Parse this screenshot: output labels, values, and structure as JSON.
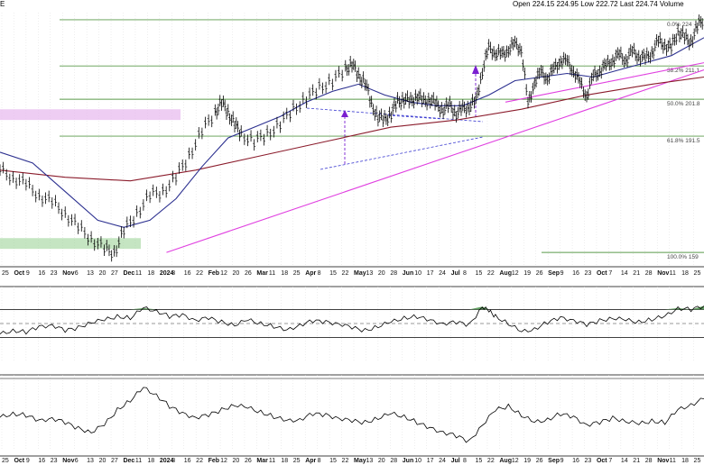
{
  "header": {
    "left_label": "E",
    "open_label": "Open",
    "open_value": "224.15",
    "high_value": "224.95",
    "low_label": "Low",
    "low_value": "222.72",
    "last_label": "Last",
    "last_value": "224.74",
    "volume_label": "Volume"
  },
  "colors": {
    "price": "#000000",
    "ma_fast": "#2b2f8f",
    "ma_slow": "#8b1c2c",
    "trendline": "#e040e0",
    "fib": "#5a9a4a",
    "support_zone": "#9fd49a",
    "resistance_zone": "#e7b8ee",
    "wedge": "#3a3ad0",
    "arrow": "#7a1fd0"
  },
  "chart_data": [
    {
      "type": "line",
      "panel": "price",
      "x_tick_labels": [
        "25",
        "Oct",
        "9",
        "16",
        "23",
        "Nov",
        "6",
        "13",
        "20",
        "27",
        "Dec",
        "11",
        "18",
        "2024",
        "8",
        "16",
        "22",
        "Feb",
        "12",
        "20",
        "26",
        "Mar",
        "11",
        "18",
        "25",
        "Apr",
        "8",
        "15",
        "22",
        "May",
        "13",
        "20",
        "28",
        "Jun",
        "10",
        "17",
        "24",
        "Jul",
        "8",
        "15",
        "22",
        "Aug",
        "12",
        "19",
        "26",
        "Sep",
        "9",
        "16",
        "23",
        "Oct",
        "7",
        "14",
        "21",
        "28",
        "Nov",
        "11",
        "18",
        "25"
      ],
      "bold_ticks": [
        "Oct",
        "Nov",
        "Dec",
        "2024",
        "Feb",
        "Mar",
        "Apr",
        "May",
        "Jun",
        "Jul",
        "Aug",
        "Sep",
        "Oct",
        "Nov"
      ],
      "fib_levels": [
        {
          "label": "0.0% 224",
          "value": 224
        },
        {
          "label": "38.2% 211.1",
          "value": 211.1
        },
        {
          "label": "50.0% 201.8",
          "value": 201.8
        },
        {
          "label": "61.8% 191.5",
          "value": 191.5
        },
        {
          "label": "100.0% 159",
          "value": 159
        }
      ],
      "ylim": [
        155,
        226
      ],
      "price_series": [
        [
          0,
          182
        ],
        [
          4,
          180
        ],
        [
          8,
          178
        ],
        [
          12,
          175
        ],
        [
          16,
          173
        ],
        [
          20,
          170
        ],
        [
          24,
          166
        ],
        [
          28,
          163
        ],
        [
          32,
          160
        ],
        [
          35,
          159
        ],
        [
          38,
          165
        ],
        [
          42,
          170
        ],
        [
          46,
          175
        ],
        [
          50,
          176
        ],
        [
          54,
          180
        ],
        [
          58,
          186
        ],
        [
          62,
          193
        ],
        [
          66,
          198
        ],
        [
          68,
          201
        ],
        [
          70,
          198
        ],
        [
          72,
          195
        ],
        [
          74,
          192
        ],
        [
          78,
          190
        ],
        [
          82,
          192
        ],
        [
          86,
          195
        ],
        [
          90,
          199
        ],
        [
          94,
          202
        ],
        [
          98,
          205
        ],
        [
          102,
          207
        ],
        [
          106,
          210
        ],
        [
          108,
          212
        ],
        [
          110,
          208
        ],
        [
          112,
          207
        ],
        [
          114,
          200
        ],
        [
          116,
          197
        ],
        [
          118,
          196
        ],
        [
          120,
          198
        ],
        [
          122,
          201
        ],
        [
          124,
          202
        ],
        [
          126,
          201
        ],
        [
          128,
          203
        ],
        [
          130,
          201
        ],
        [
          132,
          202
        ],
        [
          134,
          200
        ],
        [
          136,
          199
        ],
        [
          138,
          200
        ],
        [
          140,
          198
        ],
        [
          142,
          199
        ],
        [
          144,
          200
        ],
        [
          146,
          201
        ],
        [
          148,
          210
        ],
        [
          150,
          216
        ],
        [
          152,
          215
        ],
        [
          154,
          214
        ],
        [
          156,
          216
        ],
        [
          158,
          217
        ],
        [
          160,
          216
        ],
        [
          162,
          200
        ],
        [
          164,
          207
        ],
        [
          166,
          209
        ],
        [
          168,
          208
        ],
        [
          170,
          210
        ],
        [
          172,
          213
        ],
        [
          174,
          212
        ],
        [
          176,
          210
        ],
        [
          178,
          206
        ],
        [
          180,
          203
        ],
        [
          182,
          208
        ],
        [
          184,
          210
        ],
        [
          186,
          211
        ],
        [
          188,
          213
        ],
        [
          190,
          214
        ],
        [
          192,
          213
        ],
        [
          194,
          215
        ],
        [
          196,
          214
        ],
        [
          198,
          213
        ],
        [
          200,
          215
        ],
        [
          202,
          218
        ],
        [
          204,
          217
        ],
        [
          206,
          216
        ],
        [
          208,
          221
        ],
        [
          210,
          219
        ],
        [
          212,
          218
        ],
        [
          214,
          222
        ],
        [
          216,
          224.74
        ]
      ],
      "ma_fast_series": [
        [
          0,
          187
        ],
        [
          10,
          184
        ],
        [
          20,
          176
        ],
        [
          30,
          168
        ],
        [
          38,
          166
        ],
        [
          46,
          168
        ],
        [
          54,
          174
        ],
        [
          62,
          183
        ],
        [
          70,
          191
        ],
        [
          78,
          194
        ],
        [
          86,
          197
        ],
        [
          94,
          201
        ],
        [
          102,
          204
        ],
        [
          110,
          206
        ],
        [
          118,
          203
        ],
        [
          126,
          201
        ],
        [
          134,
          200
        ],
        [
          142,
          200
        ],
        [
          150,
          203
        ],
        [
          158,
          207
        ],
        [
          166,
          208
        ],
        [
          174,
          209
        ],
        [
          182,
          208
        ],
        [
          190,
          210
        ],
        [
          198,
          212
        ],
        [
          206,
          214
        ],
        [
          212,
          217
        ],
        [
          216,
          219
        ]
      ],
      "ma_slow_series": [
        [
          0,
          182
        ],
        [
          20,
          180
        ],
        [
          40,
          179
        ],
        [
          60,
          182
        ],
        [
          80,
          186
        ],
        [
          100,
          190
        ],
        [
          120,
          194
        ],
        [
          140,
          196
        ],
        [
          160,
          199
        ],
        [
          180,
          203
        ],
        [
          200,
          206
        ],
        [
          216,
          208
        ]
      ],
      "trendline": [
        [
          40,
          159
        ],
        [
          216,
          210
        ]
      ],
      "support_zone": [
        160,
        163
      ],
      "resistance_zone": [
        196,
        199
      ]
    },
    {
      "type": "line",
      "panel": "oscillator_1",
      "ylim": [
        0,
        100
      ],
      "reference_levels": [
        70,
        50,
        30
      ],
      "series": [
        [
          0,
          35
        ],
        [
          4,
          40
        ],
        [
          8,
          38
        ],
        [
          12,
          45
        ],
        [
          16,
          48
        ],
        [
          20,
          40
        ],
        [
          24,
          44
        ],
        [
          28,
          52
        ],
        [
          32,
          55
        ],
        [
          36,
          60
        ],
        [
          40,
          58
        ],
        [
          44,
          72
        ],
        [
          48,
          68
        ],
        [
          52,
          60
        ],
        [
          56,
          62
        ],
        [
          60,
          55
        ],
        [
          64,
          58
        ],
        [
          68,
          52
        ],
        [
          72,
          48
        ],
        [
          76,
          55
        ],
        [
          80,
          50
        ],
        [
          84,
          46
        ],
        [
          88,
          40
        ],
        [
          92,
          48
        ],
        [
          96,
          54
        ],
        [
          100,
          52
        ],
        [
          104,
          50
        ],
        [
          108,
          44
        ],
        [
          112,
          40
        ],
        [
          116,
          46
        ],
        [
          120,
          52
        ],
        [
          124,
          58
        ],
        [
          128,
          60
        ],
        [
          132,
          54
        ],
        [
          136,
          50
        ],
        [
          140,
          52
        ],
        [
          144,
          48
        ],
        [
          148,
          74
        ],
        [
          150,
          68
        ],
        [
          152,
          60
        ],
        [
          156,
          50
        ],
        [
          160,
          38
        ],
        [
          164,
          42
        ],
        [
          168,
          52
        ],
        [
          172,
          58
        ],
        [
          176,
          55
        ],
        [
          180,
          48
        ],
        [
          184,
          54
        ],
        [
          188,
          58
        ],
        [
          192,
          55
        ],
        [
          196,
          52
        ],
        [
          200,
          56
        ],
        [
          204,
          60
        ],
        [
          208,
          72
        ],
        [
          212,
          70
        ],
        [
          216,
          75
        ]
      ]
    },
    {
      "type": "line",
      "panel": "oscillator_2",
      "ylim": [
        0,
        100
      ],
      "series": [
        [
          0,
          45
        ],
        [
          4,
          50
        ],
        [
          8,
          48
        ],
        [
          12,
          40
        ],
        [
          16,
          44
        ],
        [
          20,
          38
        ],
        [
          24,
          30
        ],
        [
          28,
          25
        ],
        [
          32,
          35
        ],
        [
          36,
          55
        ],
        [
          40,
          68
        ],
        [
          44,
          85
        ],
        [
          48,
          75
        ],
        [
          52,
          60
        ],
        [
          56,
          50
        ],
        [
          60,
          45
        ],
        [
          64,
          48
        ],
        [
          68,
          55
        ],
        [
          72,
          62
        ],
        [
          76,
          58
        ],
        [
          80,
          52
        ],
        [
          84,
          46
        ],
        [
          88,
          40
        ],
        [
          92,
          42
        ],
        [
          96,
          50
        ],
        [
          100,
          48
        ],
        [
          104,
          44
        ],
        [
          108,
          40
        ],
        [
          112,
          38
        ],
        [
          116,
          44
        ],
        [
          120,
          50
        ],
        [
          124,
          46
        ],
        [
          128,
          38
        ],
        [
          132,
          30
        ],
        [
          136,
          25
        ],
        [
          140,
          20
        ],
        [
          144,
          12
        ],
        [
          148,
          35
        ],
        [
          152,
          55
        ],
        [
          156,
          60
        ],
        [
          160,
          48
        ],
        [
          164,
          38
        ],
        [
          168,
          42
        ],
        [
          172,
          50
        ],
        [
          176,
          45
        ],
        [
          180,
          35
        ],
        [
          184,
          38
        ],
        [
          188,
          44
        ],
        [
          192,
          40
        ],
        [
          196,
          36
        ],
        [
          200,
          40
        ],
        [
          204,
          38
        ],
        [
          208,
          55
        ],
        [
          212,
          62
        ],
        [
          216,
          70
        ]
      ]
    }
  ]
}
